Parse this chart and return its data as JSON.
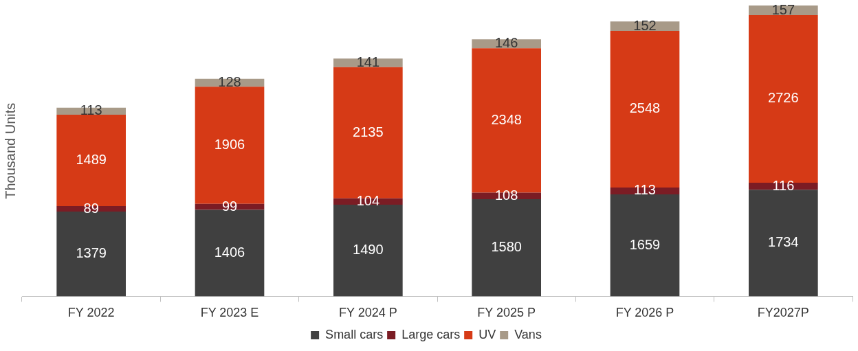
{
  "chart_data": {
    "type": "bar",
    "stacked": true,
    "ylabel": "Thousand Units",
    "categories": [
      "FY 2022",
      "FY 2023 E",
      "FY 2024 P",
      "FY 2025 P",
      "FY 2026 P",
      "FY2027P"
    ],
    "series": [
      {
        "name": "Small cars",
        "color": "#404040",
        "values": [
          1379,
          1406,
          1490,
          1580,
          1659,
          1734
        ]
      },
      {
        "name": "Large cars",
        "color": "#7b1c24",
        "values": [
          89,
          99,
          104,
          108,
          113,
          116
        ]
      },
      {
        "name": "UV",
        "color": "#d63a16",
        "values": [
          1489,
          1906,
          2135,
          2348,
          2548,
          2726
        ]
      },
      {
        "name": "Vans",
        "color": "#a89a88",
        "values": [
          113,
          128,
          141,
          146,
          152,
          157
        ]
      }
    ],
    "data_labels": true,
    "legend": "bottom",
    "grid": false
  }
}
